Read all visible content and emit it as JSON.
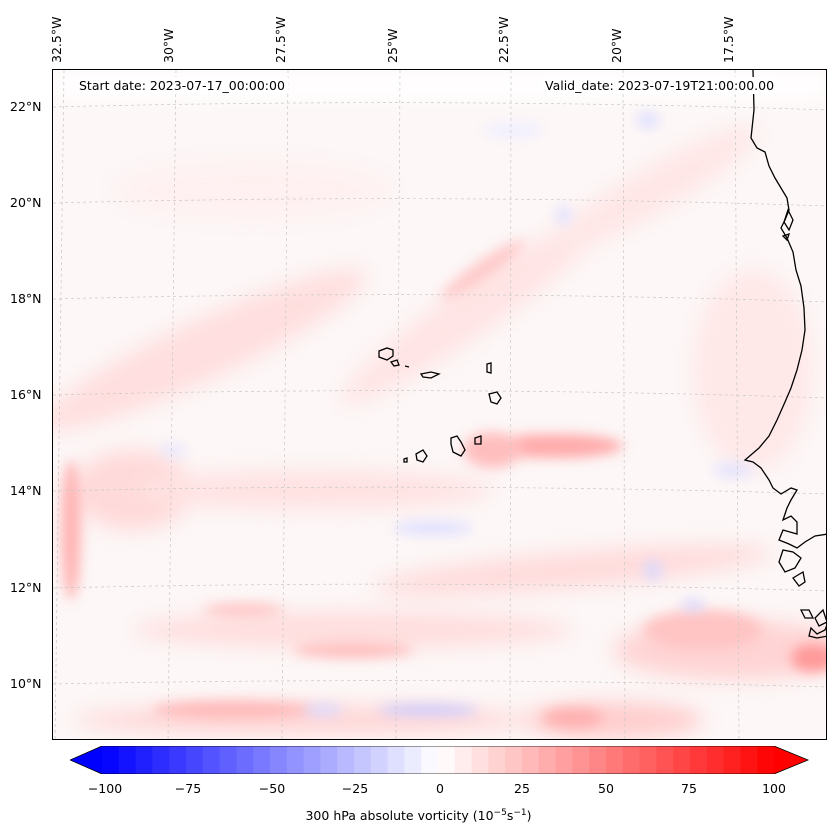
{
  "map": {
    "lon_labels": [
      "32.5°W",
      "30°W",
      "27.5°W",
      "25°W",
      "22.5°W",
      "20°W",
      "17.5°W"
    ],
    "lat_labels": [
      "22°N",
      "20°N",
      "18°N",
      "16°N",
      "14°N",
      "12°N",
      "10°N"
    ],
    "start_date": "Start date: 2023-07-17_00:00:00",
    "valid_date": "Valid_date: 2023-07-19T21:00:00.00"
  },
  "colorbar": {
    "ticks": [
      "−100",
      "−75",
      "−50",
      "−25",
      "0",
      "25",
      "50",
      "75",
      "100"
    ],
    "label_main": "300 hPa absolute vorticity (10",
    "label_exp1": "−5",
    "label_mid": "s",
    "label_exp2": "−1",
    "label_end": ")",
    "range": [
      -100,
      100
    ],
    "colors": {
      "min": "#0000ff",
      "mid": "#ffffff",
      "max": "#ff0000"
    }
  }
}
